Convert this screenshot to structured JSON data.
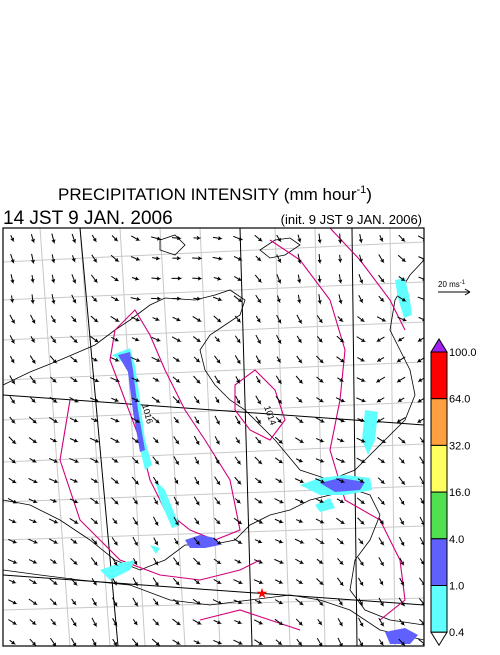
{
  "title": {
    "text": "PRECIPITATION INTENSITY (mm hour",
    "superscript": "-1",
    "close": ")"
  },
  "time": "14 JST 9 JAN. 2006",
  "init": "(init. 9 JST 9 JAN. 2006)",
  "vector_scale": {
    "text": "20 ms",
    "superscript": "-1"
  },
  "colorbar": {
    "labels": [
      "100.0",
      "64.0",
      "32.0",
      "16.0",
      "4.0",
      "1.0",
      "0.4"
    ],
    "colors": [
      "#ff0000",
      "#ffa040",
      "#ffff60",
      "#50e050",
      "#6060ff",
      "#60ffff"
    ],
    "top_color": "#a020f0",
    "bottom_color": "#ffffff"
  },
  "contour_labels": [
    "1014",
    "1016"
  ]
}
